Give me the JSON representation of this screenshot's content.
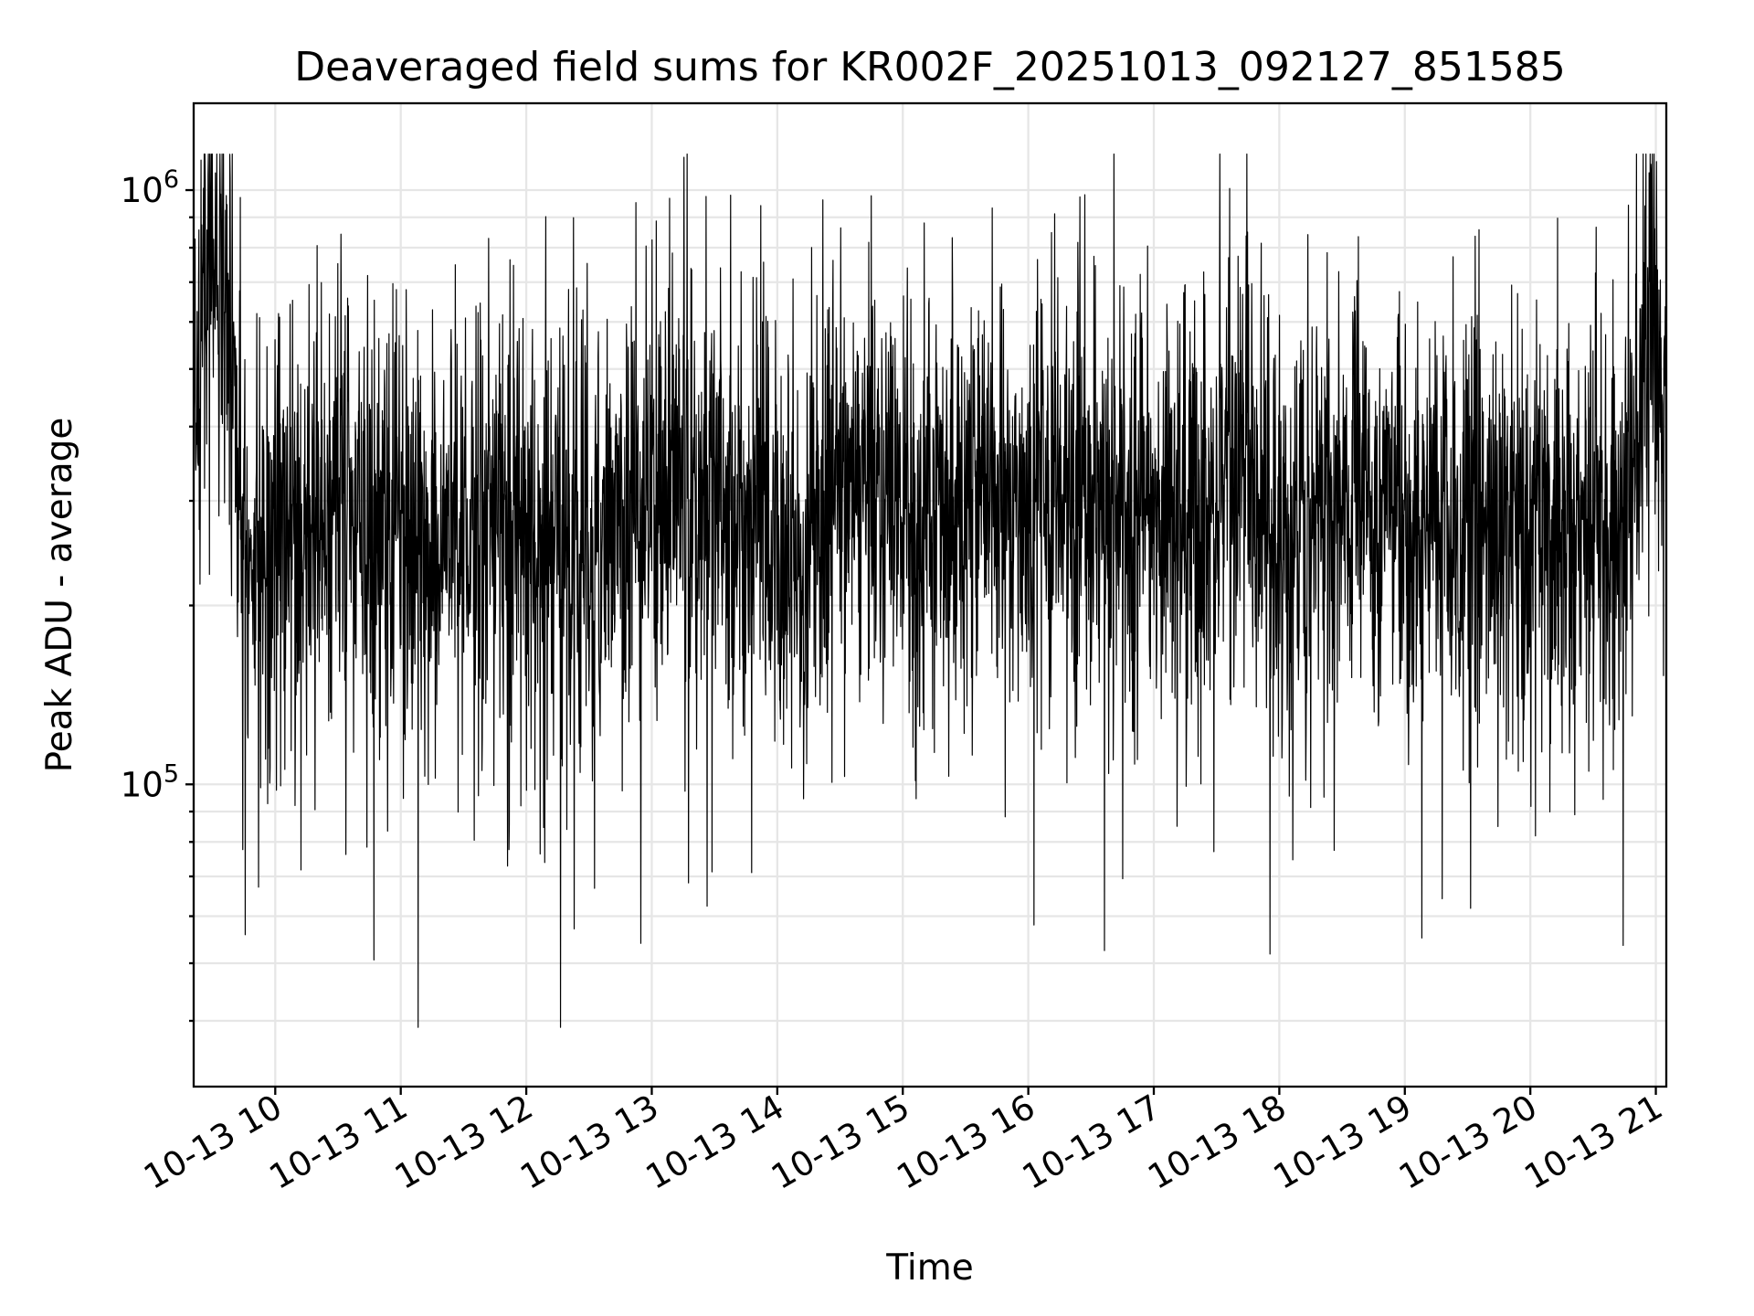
{
  "chart_data": {
    "type": "line",
    "title": "Deaveraged field sums for KR002F_20251013_092127_851585",
    "xlabel": "Time",
    "ylabel": "Peak ADU - average",
    "yscale": "log",
    "ylim": [
      31000,
      1400000
    ],
    "xlim": [
      "2025-10-13 09:21",
      "2025-10-13 21:05"
    ],
    "grid": true,
    "legend": false,
    "line_color": "#000000",
    "x_ticks": [
      {
        "label": "10-13 10",
        "time": "2025-10-13 10:00"
      },
      {
        "label": "10-13 11",
        "time": "2025-10-13 11:00"
      },
      {
        "label": "10-13 12",
        "time": "2025-10-13 12:00"
      },
      {
        "label": "10-13 13",
        "time": "2025-10-13 13:00"
      },
      {
        "label": "10-13 14",
        "time": "2025-10-13 14:00"
      },
      {
        "label": "10-13 15",
        "time": "2025-10-13 15:00"
      },
      {
        "label": "10-13 16",
        "time": "2025-10-13 16:00"
      },
      {
        "label": "10-13 17",
        "time": "2025-10-13 17:00"
      },
      {
        "label": "10-13 18",
        "time": "2025-10-13 18:00"
      },
      {
        "label": "10-13 19",
        "time": "2025-10-13 19:00"
      },
      {
        "label": "10-13 20",
        "time": "2025-10-13 20:00"
      },
      {
        "label": "10-13 21",
        "time": "2025-10-13 21:00"
      }
    ],
    "y_ticks": [
      {
        "value": 100000,
        "base": "10",
        "exp": "5"
      },
      {
        "value": 1000000,
        "base": "10",
        "exp": "6"
      }
    ],
    "series": [
      {
        "points": [
          [
            "2025-10-13 09:21",
            400000
          ],
          [
            "2025-10-13 09:26",
            700000
          ],
          [
            "2025-10-13 09:32",
            800000
          ],
          [
            "2025-10-13 09:38",
            600000
          ],
          [
            "2025-10-13 09:44",
            300000
          ],
          [
            "2025-10-13 09:50",
            220000
          ],
          [
            "2025-10-13 09:56",
            240000
          ],
          [
            "2025-10-13 10:00",
            230000
          ],
          [
            "2025-10-13 10:10",
            250000
          ],
          [
            "2025-10-13 10:20",
            270000
          ],
          [
            "2025-10-13 10:30",
            300000
          ],
          [
            "2025-10-13 10:40",
            290000
          ],
          [
            "2025-10-13 10:50",
            270000
          ],
          [
            "2025-10-13 11:00",
            250000
          ],
          [
            "2025-10-13 11:10",
            240000
          ],
          [
            "2025-10-13 11:20",
            260000
          ],
          [
            "2025-10-13 11:30",
            280000
          ],
          [
            "2025-10-13 11:40",
            300000
          ],
          [
            "2025-10-13 11:50",
            280000
          ],
          [
            "2025-10-13 12:00",
            260000
          ],
          [
            "2025-10-13 12:10",
            250000
          ],
          [
            "2025-10-13 12:20",
            260000
          ],
          [
            "2025-10-13 12:30",
            250000
          ],
          [
            "2025-10-13 12:40",
            270000
          ],
          [
            "2025-10-13 12:50",
            290000
          ],
          [
            "2025-10-13 13:00",
            310000
          ],
          [
            "2025-10-13 13:10",
            330000
          ],
          [
            "2025-10-13 13:20",
            320000
          ],
          [
            "2025-10-13 13:30",
            300000
          ],
          [
            "2025-10-13 13:40",
            280000
          ],
          [
            "2025-10-13 13:50",
            270000
          ],
          [
            "2025-10-13 14:00",
            260000
          ],
          [
            "2025-10-13 14:10",
            250000
          ],
          [
            "2025-10-13 14:20",
            300000
          ],
          [
            "2025-10-13 14:30",
            320000
          ],
          [
            "2025-10-13 14:40",
            310000
          ],
          [
            "2025-10-13 14:50",
            290000
          ],
          [
            "2025-10-13 15:00",
            280000
          ],
          [
            "2025-10-13 15:10",
            270000
          ],
          [
            "2025-10-13 15:20",
            260000
          ],
          [
            "2025-10-13 15:30",
            290000
          ],
          [
            "2025-10-13 15:40",
            310000
          ],
          [
            "2025-10-13 15:50",
            300000
          ],
          [
            "2025-10-13 16:00",
            280000
          ],
          [
            "2025-10-13 16:10",
            300000
          ],
          [
            "2025-10-13 16:20",
            320000
          ],
          [
            "2025-10-13 16:30",
            310000
          ],
          [
            "2025-10-13 16:40",
            300000
          ],
          [
            "2025-10-13 16:50",
            290000
          ],
          [
            "2025-10-13 17:00",
            300000
          ],
          [
            "2025-10-13 17:10",
            280000
          ],
          [
            "2025-10-13 17:20",
            290000
          ],
          [
            "2025-10-13 17:30",
            310000
          ],
          [
            "2025-10-13 17:40",
            330000
          ],
          [
            "2025-10-13 17:50",
            300000
          ],
          [
            "2025-10-13 18:00",
            280000
          ],
          [
            "2025-10-13 18:10",
            270000
          ],
          [
            "2025-10-13 18:20",
            290000
          ],
          [
            "2025-10-13 18:30",
            300000
          ],
          [
            "2025-10-13 18:40",
            290000
          ],
          [
            "2025-10-13 18:50",
            270000
          ],
          [
            "2025-10-13 19:00",
            260000
          ],
          [
            "2025-10-13 19:10",
            270000
          ],
          [
            "2025-10-13 19:20",
            290000
          ],
          [
            "2025-10-13 19:30",
            300000
          ],
          [
            "2025-10-13 19:40",
            290000
          ],
          [
            "2025-10-13 19:50",
            280000
          ],
          [
            "2025-10-13 20:00",
            270000
          ],
          [
            "2025-10-13 20:10",
            260000
          ],
          [
            "2025-10-13 20:20",
            270000
          ],
          [
            "2025-10-13 20:30",
            280000
          ],
          [
            "2025-10-13 20:40",
            260000
          ],
          [
            "2025-10-13 20:50",
            330000
          ],
          [
            "2025-10-13 20:56",
            650000
          ],
          [
            "2025-10-13 20:59",
            550000
          ],
          [
            "2025-10-13 21:02",
            420000
          ],
          [
            "2025-10-13 21:05",
            400000
          ]
        ]
      }
    ]
  }
}
